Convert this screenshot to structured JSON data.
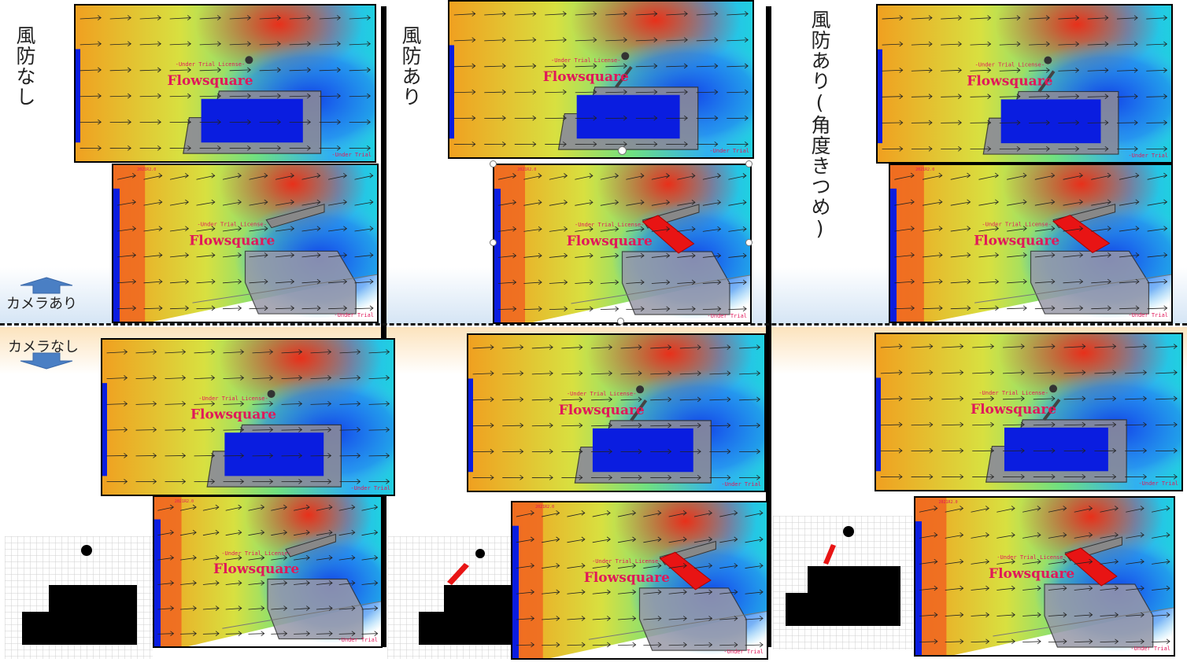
{
  "columns": [
    {
      "label": "風防なし"
    },
    {
      "label": "風防あり"
    },
    {
      "label": "風防あり(角度きつめ)"
    }
  ],
  "rows": {
    "camera_on": "カメラあり",
    "camera_off": "カメラなし"
  },
  "watermark": {
    "license": "-Under Trial License-",
    "brand": "Flowsquare",
    "version": "2021R2.0",
    "corner_text": "-Under Trial"
  },
  "colors": {
    "flow_hot": "#e8301a",
    "flow_cold": "#0a1de0",
    "watermark": "#e0185a",
    "windshield": "#e81414",
    "divider": "#000000"
  }
}
